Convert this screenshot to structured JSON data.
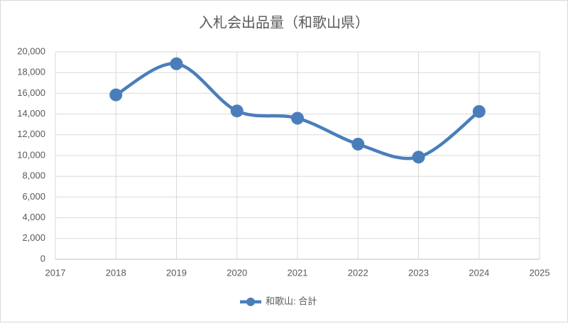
{
  "chart_data": {
    "type": "line",
    "title": "入札会出品量（和歌山県）",
    "x": [
      2018,
      2019,
      2020,
      2021,
      2022,
      2023,
      2024
    ],
    "series": [
      {
        "name": "和歌山: 合計",
        "color": "#4a7ebb",
        "values": [
          15850,
          18850,
          14300,
          13600,
          11100,
          9850,
          14250
        ]
      }
    ],
    "xlim": [
      2017,
      2025
    ],
    "xticks": [
      2017,
      2018,
      2019,
      2020,
      2021,
      2022,
      2023,
      2024,
      2025
    ],
    "ylim": [
      0,
      20000
    ],
    "yticks": [
      0,
      {
        "value": 2000,
        "label": "2,000"
      },
      {
        "value": 4000,
        "label": "4,000"
      },
      {
        "value": 6000,
        "label": "6,000"
      },
      {
        "value": 8000,
        "label": "8,000"
      },
      {
        "value": 10000,
        "label": "10,000"
      },
      {
        "value": 12000,
        "label": "12,000"
      },
      {
        "value": 14000,
        "label": "14,000"
      },
      {
        "value": 16000,
        "label": "16,000"
      },
      {
        "value": 18000,
        "label": "18,000"
      },
      {
        "value": 20000,
        "label": "20,000"
      }
    ],
    "grid": true,
    "smooth": true,
    "legend": "bottom"
  }
}
